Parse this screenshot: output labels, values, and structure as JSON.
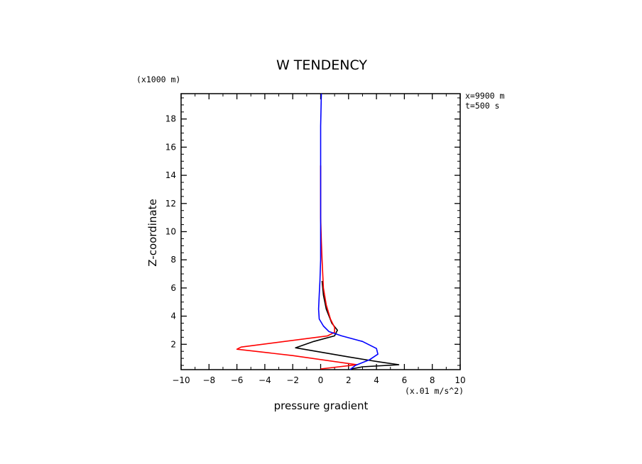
{
  "chart_data": {
    "type": "line",
    "title": "W TENDENCY",
    "xlabel": "pressure gradient",
    "ylabel": "Z-coordinate",
    "x_unit": "(x.01 m/s^2)",
    "y_unit": "(x1000 m)",
    "info": [
      "x=9900 m",
      "t=500 s"
    ],
    "xlim": [
      -10,
      10
    ],
    "ylim": [
      0.2,
      19.8
    ],
    "xticks": [
      -10,
      -8,
      -6,
      -4,
      -2,
      0,
      2,
      4,
      6,
      8,
      10
    ],
    "yticks": [
      2,
      4,
      6,
      8,
      10,
      12,
      14,
      16,
      18
    ],
    "series": [
      {
        "name": "black",
        "color": "#000000",
        "points": [
          [
            2.2,
            0.25
          ],
          [
            3.0,
            0.4
          ],
          [
            5.6,
            0.55
          ],
          [
            4.2,
            0.75
          ],
          [
            2.0,
            1.1
          ],
          [
            -1.8,
            1.75
          ],
          [
            -0.5,
            2.2
          ],
          [
            1.0,
            2.6
          ],
          [
            1.2,
            3.0
          ],
          [
            0.8,
            3.5
          ],
          [
            0.4,
            4.5
          ],
          [
            0.2,
            5.5
          ],
          [
            0.1,
            6.5
          ]
        ]
      },
      {
        "name": "red",
        "color": "#ff0000",
        "points": [
          [
            0.0,
            0.25
          ],
          [
            2.6,
            0.55
          ],
          [
            -2.0,
            1.2
          ],
          [
            -6.0,
            1.65
          ],
          [
            -5.7,
            1.8
          ],
          [
            0.5,
            2.6
          ],
          [
            1.0,
            2.85
          ],
          [
            1.0,
            3.2
          ],
          [
            0.7,
            3.8
          ],
          [
            0.4,
            4.8
          ],
          [
            0.2,
            6.0
          ],
          [
            0.1,
            8.0
          ],
          [
            0.05,
            9.3
          ],
          [
            0.0,
            11.0
          ],
          [
            0.0,
            13.5
          ],
          [
            0.0,
            14.7
          ]
        ]
      },
      {
        "name": "blue",
        "color": "#0000ff",
        "points": [
          [
            2.1,
            0.2
          ],
          [
            2.5,
            0.5
          ],
          [
            3.5,
            0.9
          ],
          [
            4.1,
            1.3
          ],
          [
            4.0,
            1.7
          ],
          [
            3.0,
            2.2
          ],
          [
            1.5,
            2.6
          ],
          [
            0.6,
            2.9
          ],
          [
            0.2,
            3.3
          ],
          [
            -0.1,
            3.8
          ],
          [
            -0.15,
            4.5
          ],
          [
            -0.1,
            5.5
          ],
          [
            -0.05,
            6.5
          ],
          [
            0.0,
            8.0
          ],
          [
            0.0,
            10.5
          ],
          [
            0.0,
            11.5
          ],
          [
            0.0,
            14.5
          ],
          [
            0.0,
            17.5
          ],
          [
            0.05,
            19.8
          ]
        ]
      }
    ]
  }
}
